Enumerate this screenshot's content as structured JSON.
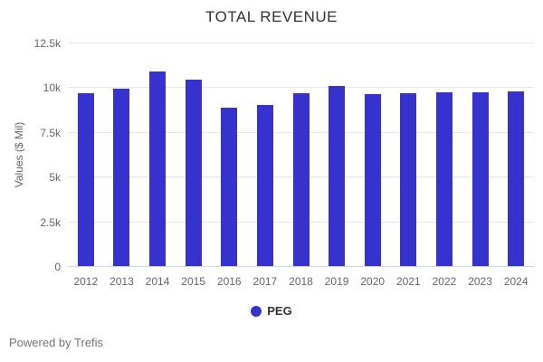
{
  "header": {
    "title": "TOTAL REVENUE"
  },
  "chart_data": {
    "type": "bar",
    "title": "TOTAL REVENUE",
    "xlabel": "",
    "ylabel": "Values ($ Mil)",
    "categories": [
      "2012",
      "2013",
      "2014",
      "2015",
      "2016",
      "2017",
      "2018",
      "2019",
      "2020",
      "2021",
      "2022",
      "2023",
      "2024"
    ],
    "series": [
      {
        "name": "PEG",
        "color": "#3632cd",
        "values": [
          9700,
          9980,
          10910,
          10470,
          8900,
          9050,
          9700,
          10100,
          9650,
          9730,
          9780,
          9780,
          9830
        ]
      }
    ],
    "ylim": [
      0,
      12500
    ],
    "yticks": [
      {
        "value": 0,
        "label": "0"
      },
      {
        "value": 2500,
        "label": "2.5k"
      },
      {
        "value": 5000,
        "label": "5k"
      },
      {
        "value": 7500,
        "label": "7.5k"
      },
      {
        "value": 10000,
        "label": "10k"
      },
      {
        "value": 12500,
        "label": "12.5k"
      }
    ],
    "grid": true,
    "legend_position": "bottom"
  },
  "legend": {
    "label": "PEG",
    "marker_color": "#3632cd"
  },
  "footer": {
    "text": "Powered by Trefis"
  },
  "colors": {
    "bar": "#3632cd",
    "gridline": "#e6e6e6",
    "axis_line": "#ccd6eb",
    "tick_label": "#666666",
    "title": "#333333",
    "footer_text": "#757575",
    "background": "#ffffff"
  }
}
